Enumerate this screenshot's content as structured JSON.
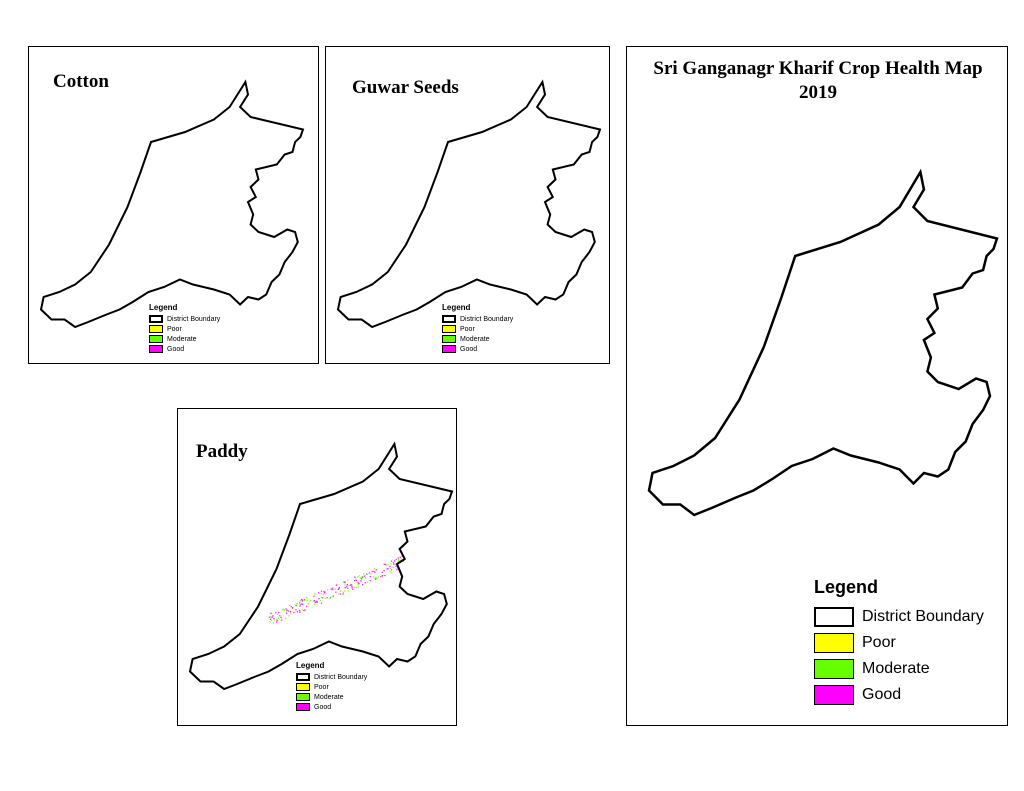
{
  "panels": {
    "cotton": {
      "title": "Cotton",
      "good_density": 0.55,
      "moderate_density": 0.1,
      "poor_density": 0.02
    },
    "guwar": {
      "title": "Guwar Seeds",
      "good_density": 0.4,
      "moderate_density": 0.55,
      "poor_density": 0.03
    },
    "paddy": {
      "title": "Paddy"
    },
    "main": {
      "title_line1": "Sri Ganganagr Kharif Crop Health Map",
      "title_line2": "2019",
      "good_density": 0.6,
      "moderate_density": 0.55,
      "poor_density": 0.03
    }
  },
  "legend": {
    "title": "Legend",
    "items": [
      {
        "label": "District Boundary",
        "color": "#ffffff"
      },
      {
        "label": "Poor",
        "color": "#ffff00"
      },
      {
        "label": "Moderate",
        "color": "#66ff00"
      },
      {
        "label": "Good",
        "color": "#ff00ff"
      }
    ]
  }
}
